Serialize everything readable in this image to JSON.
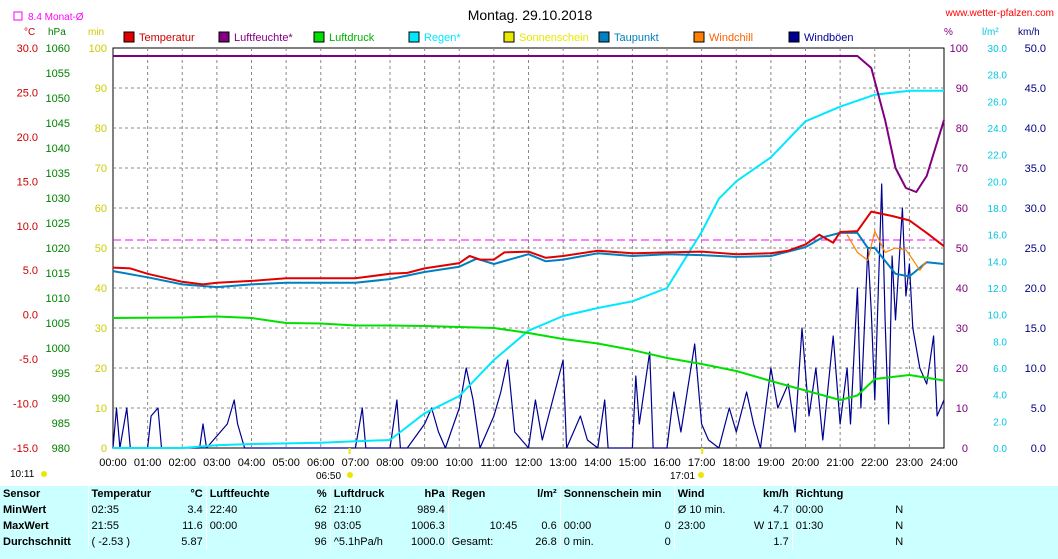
{
  "title": "Montag. 29.10.2018",
  "site": "www.wetter-pfalzen.com",
  "monat_label": "8.4 Monat-Ø",
  "sunrise": "06:50",
  "sunset": "17:01",
  "daylength": "10:11",
  "colors": {
    "temperatur": "#e00000",
    "luftfeuchte": "#800080",
    "luftdruck": "#00e000",
    "regen": "#00e8ff",
    "sonnenschein": "#e8e800",
    "taupunkt": "#0080c0",
    "windchill": "#ff8000",
    "windboeen": "#000090",
    "monat": "#ff00ff"
  },
  "stats": {
    "header": {
      "sensor": "Sensor",
      "temperatur": "Temperatur",
      "temp_unit": "°C",
      "luftfeuchte": "Luftfeuchte",
      "feuchte_unit": "%",
      "luftdruck": "Luftdruck",
      "druck_unit": "hPa",
      "regen": "Regen",
      "regen_unit": "l/m²",
      "sonne": "Sonnenschein min",
      "wind": "Wind",
      "wind_unit": "km/h",
      "richtung": "Richtung"
    },
    "rows": [
      {
        "label": "MinWert",
        "t_time": "02:35",
        "t_val": "3.4",
        "h_time": "22:40",
        "h_val": "62",
        "p_time": "21:10",
        "p_val": "989.4",
        "r_time": "",
        "r_val": "",
        "s_time": "",
        "s_val": "",
        "w_time": "Ø 10 min.",
        "w_val": "4.7",
        "d_time": "00:00",
        "d_val": "N"
      },
      {
        "label": "MaxWert",
        "t_time": "21:55",
        "t_val": "11.6",
        "h_time": "00:00",
        "h_val": "98",
        "p_time": "03:05",
        "p_val": "1006.3",
        "r_time": "10:45",
        "r_val": "0.6",
        "s_time": "00:00",
        "s_val": "0",
        "w_time": "23:00",
        "w_val": "W 17.1",
        "d_time": "01:30",
        "d_val": "N"
      },
      {
        "label": "Durchschnitt",
        "t_time": "( -2.53 )",
        "t_val": "5.87",
        "h_time": "",
        "h_val": "96",
        "p_time": "^5.1hPa/h",
        "p_val": "1000.0",
        "r_time": "Gesamt:",
        "r_val": "26.8",
        "s_time": "0 min.",
        "s_val": "0",
        "w_time": "",
        "w_val": "1.7",
        "d_time": "",
        "d_val": "N"
      }
    ]
  },
  "chart_data": {
    "type": "line",
    "title": "Montag. 29.10.2018",
    "x_ticks": [
      "00:00",
      "01:00",
      "02:00",
      "03:00",
      "04:00",
      "05:00",
      "06:00",
      "07:00",
      "08:00",
      "09:00",
      "10:00",
      "11:00",
      "12:00",
      "13:00",
      "14:00",
      "15:00",
      "16:00",
      "17:00",
      "18:00",
      "19:00",
      "20:00",
      "21:00",
      "22:00",
      "23:00",
      "24:00"
    ],
    "axes": {
      "temp": {
        "unit": "°C",
        "range": [
          -15,
          30
        ],
        "ticks": [
          "30.0",
          "25.0",
          "20.0",
          "15.0",
          "10.0",
          "5.0",
          "0.0",
          "-5.0",
          "-10.0",
          "-15.0"
        ]
      },
      "pressure": {
        "unit": "hPa",
        "range": [
          980,
          1060
        ],
        "ticks": [
          "1060",
          "1055",
          "1050",
          "1045",
          "1040",
          "1035",
          "1030",
          "1025",
          "1020",
          "1015",
          "1010",
          "1005",
          "1000",
          "995",
          "990",
          "985",
          "980"
        ]
      },
      "sun": {
        "unit": "min",
        "range": [
          0,
          100
        ],
        "ticks": [
          "100",
          "90",
          "80",
          "70",
          "60",
          "50",
          "40",
          "30",
          "20",
          "10",
          "0"
        ]
      },
      "humidity": {
        "unit": "%",
        "range": [
          0,
          100
        ],
        "ticks": [
          "100",
          "90",
          "80",
          "70",
          "60",
          "50",
          "40",
          "30",
          "20",
          "10",
          "0"
        ]
      },
      "rain": {
        "unit": "l/m²",
        "range": [
          0,
          30
        ],
        "ticks": [
          "30.0",
          "28.0",
          "26.0",
          "24.0",
          "22.0",
          "20.0",
          "18.0",
          "16.0",
          "14.0",
          "12.0",
          "10.0",
          "8.0",
          "6.0",
          "4.0",
          "2.0",
          "0.0"
        ]
      },
      "wind": {
        "unit": "km/h",
        "range": [
          0,
          50
        ],
        "ticks": [
          "50.0",
          "45.0",
          "40.0",
          "35.0",
          "30.0",
          "25.0",
          "20.0",
          "15.0",
          "10.0",
          "5.0",
          "0.0"
        ]
      }
    },
    "monat_avg_temp": 8.4,
    "series": [
      {
        "name": "Temperatur",
        "axis": "temp",
        "points": [
          [
            0,
            5.3
          ],
          [
            0.5,
            5.2
          ],
          [
            1,
            4.6
          ],
          [
            2,
            3.7
          ],
          [
            2.6,
            3.4
          ],
          [
            3,
            3.6
          ],
          [
            4,
            3.8
          ],
          [
            5,
            4.1
          ],
          [
            6,
            4.1
          ],
          [
            7,
            4.1
          ],
          [
            8,
            4.6
          ],
          [
            8.5,
            4.7
          ],
          [
            9,
            5.2
          ],
          [
            10,
            5.8
          ],
          [
            10.3,
            6.6
          ],
          [
            10.6,
            6.2
          ],
          [
            11,
            6.2
          ],
          [
            11.3,
            7.0
          ],
          [
            12,
            7.1
          ],
          [
            12.5,
            6.4
          ],
          [
            13,
            6.6
          ],
          [
            14,
            7.2
          ],
          [
            15,
            6.9
          ],
          [
            16,
            7.0
          ],
          [
            17,
            7.1
          ],
          [
            18,
            6.8
          ],
          [
            19,
            6.9
          ],
          [
            19.5,
            7.2
          ],
          [
            20,
            7.9
          ],
          [
            20.4,
            9.0
          ],
          [
            20.8,
            8.1
          ],
          [
            21,
            9.3
          ],
          [
            21.5,
            9.4
          ],
          [
            21.9,
            11.6
          ],
          [
            22.5,
            11.1
          ],
          [
            23,
            10.6
          ],
          [
            23.5,
            9.2
          ],
          [
            24,
            7.7
          ]
        ]
      },
      {
        "name": "Luftfeuchte",
        "axis": "humidity",
        "points": [
          [
            0,
            98
          ],
          [
            21.5,
            98
          ],
          [
            21.9,
            95
          ],
          [
            22.3,
            82
          ],
          [
            22.6,
            70
          ],
          [
            22.9,
            65
          ],
          [
            23.2,
            64
          ],
          [
            23.5,
            68
          ],
          [
            24,
            82
          ]
        ]
      },
      {
        "name": "Luftdruck",
        "axis": "pressure",
        "points": [
          [
            0,
            1006.0
          ],
          [
            2,
            1006.1
          ],
          [
            3,
            1006.3
          ],
          [
            4,
            1006.0
          ],
          [
            5,
            1005.0
          ],
          [
            6,
            1004.9
          ],
          [
            7,
            1004.5
          ],
          [
            8,
            1004.5
          ],
          [
            9,
            1004.4
          ],
          [
            10,
            1004.2
          ],
          [
            11,
            1004.0
          ],
          [
            12,
            1003.0
          ],
          [
            13,
            1001.8
          ],
          [
            14,
            1000.9
          ],
          [
            15,
            999.6
          ],
          [
            16,
            998.0
          ],
          [
            17,
            996.8
          ],
          [
            18,
            995.4
          ],
          [
            19,
            993.4
          ],
          [
            20,
            991.5
          ],
          [
            21,
            989.6
          ],
          [
            21.5,
            990.5
          ],
          [
            22,
            993.8
          ],
          [
            23,
            994.6
          ],
          [
            24,
            993.5
          ]
        ]
      },
      {
        "name": "Regen",
        "axis": "rain",
        "points": [
          [
            0,
            0
          ],
          [
            2,
            0.0
          ],
          [
            3,
            0.2
          ],
          [
            4,
            0.3
          ],
          [
            6,
            0.4
          ],
          [
            7,
            0.5
          ],
          [
            8,
            0.6
          ],
          [
            9,
            2.6
          ],
          [
            10,
            3.9
          ],
          [
            11,
            6.6
          ],
          [
            12,
            8.8
          ],
          [
            13,
            9.9
          ],
          [
            14,
            10.5
          ],
          [
            15,
            11.0
          ],
          [
            16,
            12.0
          ],
          [
            17,
            16.2
          ],
          [
            17.5,
            18.7
          ],
          [
            18,
            20.0
          ],
          [
            19,
            21.8
          ],
          [
            20,
            24.5
          ],
          [
            21,
            25.6
          ],
          [
            22,
            26.5
          ],
          [
            23,
            26.8
          ],
          [
            24,
            26.8
          ]
        ]
      },
      {
        "name": "Taupunkt",
        "axis": "temp",
        "points": [
          [
            0,
            4.9
          ],
          [
            1,
            4.2
          ],
          [
            2,
            3.4
          ],
          [
            3,
            3.1
          ],
          [
            4,
            3.4
          ],
          [
            5,
            3.6
          ],
          [
            6,
            3.6
          ],
          [
            7,
            3.6
          ],
          [
            8,
            4.0
          ],
          [
            9,
            4.8
          ],
          [
            10,
            5.4
          ],
          [
            10.5,
            6.3
          ],
          [
            11,
            5.7
          ],
          [
            12,
            6.8
          ],
          [
            12.5,
            6.0
          ],
          [
            13,
            6.2
          ],
          [
            14,
            6.9
          ],
          [
            15,
            6.6
          ],
          [
            16,
            6.8
          ],
          [
            17,
            6.7
          ],
          [
            18,
            6.5
          ],
          [
            19,
            6.6
          ],
          [
            20,
            7.6
          ],
          [
            20.5,
            8.7
          ],
          [
            21,
            9.2
          ],
          [
            21.5,
            9.2
          ],
          [
            21.8,
            7.5
          ],
          [
            22,
            7.5
          ],
          [
            22.6,
            4.6
          ],
          [
            23,
            4.3
          ],
          [
            23.5,
            5.9
          ],
          [
            24,
            5.7
          ]
        ]
      },
      {
        "name": "Windchill",
        "axis": "temp",
        "points": [
          [
            21.2,
            9.0
          ],
          [
            21.5,
            7.0
          ],
          [
            21.8,
            6.1
          ],
          [
            22,
            9.4
          ],
          [
            22.3,
            7.0
          ],
          [
            22.6,
            7.5
          ],
          [
            22.9,
            7.3
          ],
          [
            23.1,
            6.2
          ],
          [
            23.3,
            5.0
          ],
          [
            23.5,
            6.0
          ]
        ]
      },
      {
        "name": "Windböen",
        "axis": "wind",
        "points": [
          [
            0,
            0
          ],
          [
            0.1,
            5
          ],
          [
            0.2,
            0
          ],
          [
            0.4,
            5
          ],
          [
            0.5,
            0
          ],
          [
            1,
            0
          ],
          [
            1.1,
            4
          ],
          [
            1.3,
            5
          ],
          [
            1.4,
            0
          ],
          [
            2.5,
            0
          ],
          [
            2.6,
            3
          ],
          [
            2.7,
            0
          ],
          [
            3.3,
            3
          ],
          [
            3.5,
            6
          ],
          [
            3.6,
            3
          ],
          [
            3.8,
            0
          ],
          [
            6,
            0
          ],
          [
            6.5,
            0
          ],
          [
            7,
            0
          ],
          [
            7.2,
            5
          ],
          [
            7.3,
            0
          ],
          [
            8,
            0
          ],
          [
            8.2,
            6
          ],
          [
            8.3,
            0
          ],
          [
            8.5,
            0
          ],
          [
            9,
            3
          ],
          [
            9.2,
            5
          ],
          [
            9.4,
            2
          ],
          [
            9.6,
            0
          ],
          [
            10,
            5
          ],
          [
            10.2,
            10
          ],
          [
            10.4,
            6
          ],
          [
            10.6,
            0
          ],
          [
            11,
            4
          ],
          [
            11.2,
            7
          ],
          [
            11.4,
            11
          ],
          [
            11.6,
            2
          ],
          [
            12,
            0
          ],
          [
            12.2,
            6
          ],
          [
            12.4,
            1
          ],
          [
            13,
            11
          ],
          [
            13.1,
            0
          ],
          [
            13.5,
            4
          ],
          [
            13.7,
            1
          ],
          [
            14,
            0
          ],
          [
            14.2,
            6
          ],
          [
            14.3,
            0
          ],
          [
            15,
            0
          ],
          [
            15.1,
            9
          ],
          [
            15.2,
            3
          ],
          [
            15.5,
            12
          ],
          [
            15.6,
            0
          ],
          [
            16,
            0
          ],
          [
            16.2,
            7
          ],
          [
            16.4,
            2
          ],
          [
            16.8,
            13
          ],
          [
            17,
            3
          ],
          [
            17.2,
            1
          ],
          [
            17.5,
            0
          ],
          [
            17.8,
            5
          ],
          [
            18,
            2
          ],
          [
            18.3,
            7
          ],
          [
            18.5,
            3
          ],
          [
            18.7,
            0
          ],
          [
            19,
            10
          ],
          [
            19.2,
            5
          ],
          [
            19.5,
            8
          ],
          [
            19.7,
            2
          ],
          [
            19.9,
            15
          ],
          [
            20.1,
            4
          ],
          [
            20.3,
            10
          ],
          [
            20.5,
            1
          ],
          [
            20.8,
            14
          ],
          [
            21,
            3
          ],
          [
            21.2,
            10
          ],
          [
            21.3,
            3
          ],
          [
            21.5,
            20
          ],
          [
            21.6,
            5
          ],
          [
            21.8,
            25
          ],
          [
            21.9,
            17
          ],
          [
            22,
            6
          ],
          [
            22.2,
            33
          ],
          [
            22.3,
            16
          ],
          [
            22.4,
            3
          ],
          [
            22.5,
            24
          ],
          [
            22.6,
            16
          ],
          [
            22.8,
            30
          ],
          [
            22.9,
            19
          ],
          [
            23,
            23
          ],
          [
            23.1,
            15
          ],
          [
            23.3,
            10
          ],
          [
            23.5,
            8
          ],
          [
            23.7,
            14
          ],
          [
            23.8,
            4
          ],
          [
            24,
            6
          ]
        ]
      }
    ],
    "legend": [
      "Temperatur",
      "Luftfeuchte*",
      "Luftdruck",
      "Regen*",
      "Sonnenschein",
      "Taupunkt",
      "Windchill",
      "Windböen"
    ],
    "legend_position": "top"
  }
}
